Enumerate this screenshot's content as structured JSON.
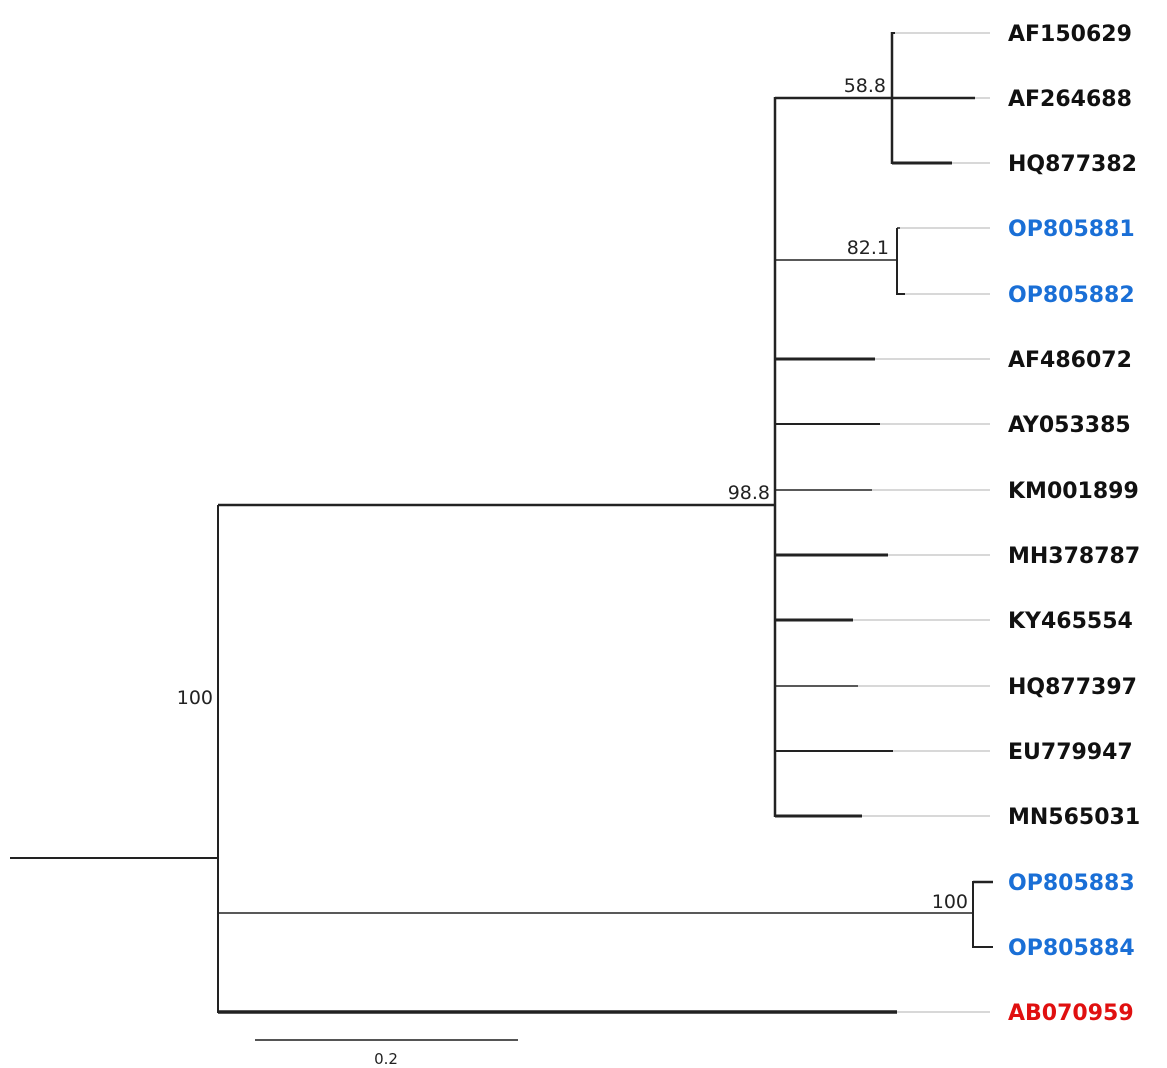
{
  "colors": {
    "reference": "#111111",
    "study": "#1a6fd6",
    "outgroup": "#e01010",
    "branch": "#222222",
    "guide": "#d8d8d8"
  },
  "leaves": [
    {
      "name": "AF150629",
      "group": "reference"
    },
    {
      "name": "AF264688",
      "group": "reference"
    },
    {
      "name": "HQ877382",
      "group": "reference"
    },
    {
      "name": "OP805881",
      "group": "study"
    },
    {
      "name": "OP805882",
      "group": "study"
    },
    {
      "name": "AF486072",
      "group": "reference"
    },
    {
      "name": "AY053385",
      "group": "reference"
    },
    {
      "name": "KM001899",
      "group": "reference"
    },
    {
      "name": "MH378787",
      "group": "reference"
    },
    {
      "name": "KY465554",
      "group": "reference"
    },
    {
      "name": "HQ877397",
      "group": "reference"
    },
    {
      "name": "EU779947",
      "group": "reference"
    },
    {
      "name": "MN565031",
      "group": "reference"
    },
    {
      "name": "OP805883",
      "group": "study"
    },
    {
      "name": "OP805884",
      "group": "study"
    },
    {
      "name": "AB070959",
      "group": "outgroup"
    }
  ],
  "support_values": {
    "root_clade": "100",
    "main_clade": "98.8",
    "clade_AF150629_HQ877382": "58.8",
    "clade_OP805881_OP805882": "82.1",
    "clade_OP805883_OP805884": "100"
  },
  "scale_bar": {
    "label": "0.2",
    "value": 0.2
  }
}
